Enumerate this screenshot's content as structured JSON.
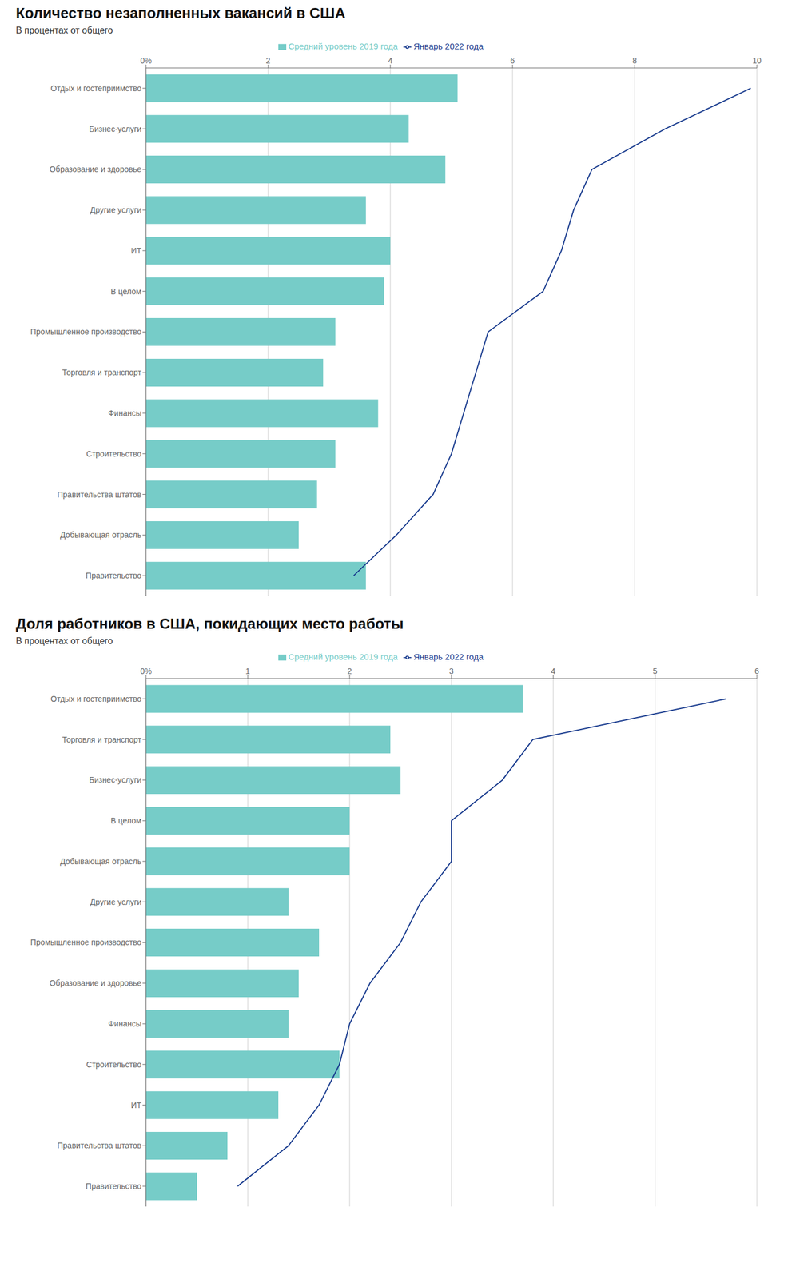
{
  "chart_data": [
    {
      "type": "bar",
      "orientation": "horizontal",
      "title": "Количество незаполненных вакансий в США",
      "subtitle": "В процентах от общего",
      "categories": [
        "Отдых и гостеприимство",
        "Бизнес-услуги",
        "Образование и здоровье",
        "Другие услуги",
        "ИТ",
        "В целом",
        "Промышленное производство",
        "Торговля и транспорт",
        "Финансы",
        "Строительство",
        "Правительства штатов",
        "Добывающая отрасль",
        "Правительство"
      ],
      "series": [
        {
          "name": "Средний уровень 2019 года",
          "type": "bar",
          "color": "#76ccc8",
          "values": [
            5.1,
            4.3,
            4.9,
            3.6,
            4.0,
            3.9,
            3.1,
            2.9,
            3.8,
            3.1,
            2.8,
            2.5,
            3.6
          ]
        },
        {
          "name": "Январь 2022 года",
          "type": "line",
          "color": "#1b3d8f",
          "values": [
            9.9,
            8.5,
            7.3,
            7.0,
            6.8,
            6.5,
            5.6,
            5.4,
            5.2,
            5.0,
            4.7,
            4.1,
            3.4
          ]
        }
      ],
      "xlim": [
        0,
        10
      ],
      "xticks": [
        {
          "value": 0,
          "label": "0%"
        },
        2,
        4,
        6,
        8,
        10
      ],
      "grid": true,
      "legend": "top"
    },
    {
      "type": "bar",
      "orientation": "horizontal",
      "title": "Доля работников в США, покидающих место работы",
      "subtitle": "В процентах от общего",
      "categories": [
        "Отдых и гостеприимство",
        "Торговля и транспорт",
        "Бизнес-услуги",
        "В целом",
        "Добывающая отрасль",
        "Другие услуги",
        "Промышленное производство",
        "Образование и здоровье",
        "Финансы",
        "Строительство",
        "ИТ",
        "Правительства штатов",
        "Правительство"
      ],
      "series": [
        {
          "name": "Средний уровень 2019 года",
          "type": "bar",
          "color": "#76ccc8",
          "values": [
            3.7,
            2.4,
            2.5,
            2.0,
            2.0,
            1.4,
            1.7,
            1.5,
            1.4,
            1.9,
            1.3,
            0.8,
            0.5
          ]
        },
        {
          "name": "Январь 2022 года",
          "type": "line",
          "color": "#1b3d8f",
          "values": [
            5.7,
            3.8,
            3.5,
            3.0,
            3.0,
            2.7,
            2.5,
            2.2,
            2.0,
            1.9,
            1.7,
            1.4,
            0.9
          ]
        }
      ],
      "xlim": [
        0,
        6
      ],
      "xticks": [
        {
          "value": 0,
          "label": "0%"
        },
        1,
        2,
        3,
        4,
        5,
        6
      ],
      "grid": true,
      "legend": "top"
    }
  ]
}
